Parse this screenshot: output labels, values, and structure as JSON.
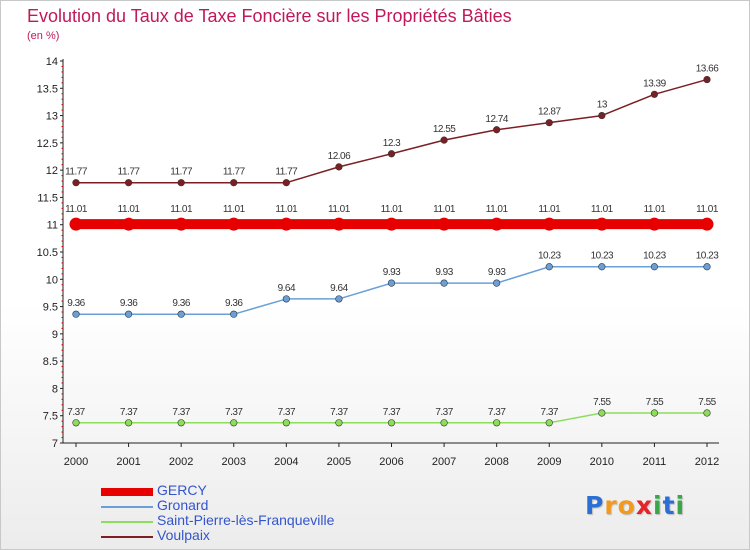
{
  "chart_data": {
    "type": "line",
    "title": "Evolution du Taux de Taxe Foncière sur les Propriétés Bâties",
    "unit_label": "(en %)",
    "xlabel": "",
    "ylabel": "(en %)",
    "x": [
      "2000",
      "2001",
      "2002",
      "2003",
      "2004",
      "2005",
      "2006",
      "2007",
      "2008",
      "2009",
      "2010",
      "2011",
      "2012"
    ],
    "ylim": [
      7,
      14
    ],
    "y_ticks": [
      "7",
      "7.5",
      "8",
      "8.5",
      "9",
      "9.5",
      "10",
      "10.5",
      "11",
      "11.5",
      "12",
      "12.5",
      "13",
      "13.5",
      "14"
    ],
    "grid": false,
    "legend_position": "bottom-left",
    "series": [
      {
        "name": "Voulpaix",
        "color": "#7b1f24",
        "style": "thin",
        "values": [
          11.77,
          11.77,
          11.77,
          11.77,
          11.77,
          12.06,
          12.3,
          12.55,
          12.74,
          12.87,
          13,
          13.39,
          13.66
        ],
        "labels": [
          "11.77",
          "11.77",
          "11.77",
          "11.77",
          "11.77",
          "12.06",
          "12.3",
          "12.55",
          "12.74",
          "12.87",
          "13",
          "13.39",
          "13.66"
        ]
      },
      {
        "name": "GERCY",
        "color": "#e60000",
        "style": "thick",
        "values": [
          11.01,
          11.01,
          11.01,
          11.01,
          11.01,
          11.01,
          11.01,
          11.01,
          11.01,
          11.01,
          11.01,
          11.01,
          11.01
        ],
        "labels": [
          "11.01",
          "11.01",
          "11.01",
          "11.01",
          "11.01",
          "11.01",
          "11.01",
          "11.01",
          "11.01",
          "11.01",
          "11.01",
          "11.01",
          "11.01"
        ]
      },
      {
        "name": "Gronard",
        "color": "#6aa0d8",
        "style": "thin",
        "values": [
          9.36,
          9.36,
          9.36,
          9.36,
          9.64,
          9.64,
          9.93,
          9.93,
          9.93,
          10.23,
          10.23,
          10.23,
          10.23
        ],
        "labels": [
          "9.36",
          "9.36",
          "9.36",
          "9.36",
          "9.64",
          "9.64",
          "9.93",
          "9.93",
          "9.93",
          "10.23",
          "10.23",
          "10.23",
          "10.23"
        ]
      },
      {
        "name": "Saint-Pierre-lès-Franqueville",
        "color": "#8ddc5a",
        "style": "thin",
        "values": [
          7.37,
          7.37,
          7.37,
          7.37,
          7.37,
          7.37,
          7.37,
          7.37,
          7.37,
          7.37,
          7.55,
          7.55,
          7.55
        ],
        "labels": [
          "7.37",
          "7.37",
          "7.37",
          "7.37",
          "7.37",
          "7.37",
          "7.37",
          "7.37",
          "7.37",
          "7.37",
          "7.55",
          "7.55",
          "7.55"
        ]
      }
    ],
    "legend": [
      {
        "name": "GERCY",
        "color": "#e60000",
        "style": "thick"
      },
      {
        "name": "Gronard",
        "color": "#6aa0d8",
        "style": "thin"
      },
      {
        "name": "Saint-Pierre-lès-Franqueville",
        "color": "#8ddc5a",
        "style": "thin"
      },
      {
        "name": "Voulpaix",
        "color": "#7b1f24",
        "style": "thin"
      }
    ]
  },
  "brand": {
    "letters": [
      "P",
      "r",
      "o",
      "x",
      "i",
      "t",
      "i"
    ],
    "colors": [
      "#2b6fd6",
      "#f29a1d",
      "#f29a1d",
      "#e52329",
      "#3aa64a",
      "#2b6fd6",
      "#3aa64a"
    ]
  }
}
